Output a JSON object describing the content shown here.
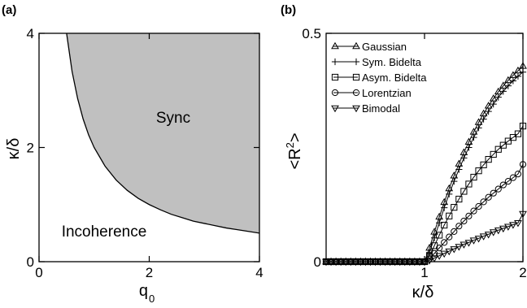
{
  "chart_data": [
    {
      "type": "area",
      "panel_label": "(a)",
      "xlabel": "q",
      "xlabel_subscript": "0",
      "ylabel": "κ/δ",
      "xlim": [
        0,
        4
      ],
      "ylim": [
        0,
        4
      ],
      "xticks": [
        0,
        2,
        4
      ],
      "xtick_labels": [
        "0",
        "2",
        "4"
      ],
      "yticks": [
        0,
        2,
        4
      ],
      "ytick_labels": [
        "0",
        "2",
        "4"
      ],
      "fill_color": "#c0c0c0",
      "boundary": {
        "x": [
          0.5,
          0.6,
          0.7,
          0.8,
          0.9,
          1.0,
          1.2,
          1.4,
          1.6,
          1.8,
          2.0,
          2.2,
          2.4,
          2.6,
          2.8,
          3.0,
          3.2,
          3.4,
          3.6,
          3.8,
          4.0
        ],
        "y": [
          4.0,
          3.33,
          2.86,
          2.5,
          2.22,
          2.0,
          1.67,
          1.43,
          1.25,
          1.11,
          1.0,
          0.91,
          0.83,
          0.77,
          0.71,
          0.67,
          0.63,
          0.59,
          0.56,
          0.53,
          0.5
        ]
      },
      "region_labels": [
        "Sync",
        "Incoherence"
      ]
    },
    {
      "type": "line",
      "panel_label": "(b)",
      "xlabel": "κ/δ",
      "ylabel": "<R",
      "ylabel_superscript": "2",
      "ylabel_end": ">",
      "xlim": [
        0,
        2
      ],
      "ylim": [
        0,
        0.5
      ],
      "xticks": [
        1,
        2
      ],
      "xtick_labels": [
        "1",
        "2"
      ],
      "yticks": [
        0,
        0.5
      ],
      "ytick_labels": [
        "0",
        "0.5"
      ],
      "legend_position": "top-left",
      "x": [
        0.0,
        0.05,
        0.1,
        0.15,
        0.2,
        0.25,
        0.3,
        0.35,
        0.4,
        0.45,
        0.5,
        0.55,
        0.6,
        0.65,
        0.7,
        0.75,
        0.8,
        0.85,
        0.9,
        0.95,
        1.0,
        1.05,
        1.1,
        1.15,
        1.2,
        1.25,
        1.3,
        1.35,
        1.4,
        1.45,
        1.5,
        1.55,
        1.6,
        1.65,
        1.7,
        1.75,
        1.8,
        1.85,
        1.9,
        1.95,
        2.0
      ],
      "series": [
        {
          "name": "Gaussian",
          "marker": "triangle-up",
          "values": [
            0,
            0,
            0,
            0,
            0,
            0,
            0,
            0,
            0,
            0,
            0,
            0,
            0,
            0,
            0,
            0,
            0,
            0,
            0,
            0,
            0,
            0.03,
            0.065,
            0.098,
            0.13,
            0.16,
            0.188,
            0.214,
            0.239,
            0.262,
            0.284,
            0.305,
            0.324,
            0.341,
            0.357,
            0.372,
            0.385,
            0.397,
            0.408,
            0.418,
            0.428
          ]
        },
        {
          "name": "Sym. Bidelta",
          "marker": "plus",
          "values": [
            0,
            0,
            0,
            0,
            0,
            0,
            0,
            0,
            0,
            0,
            0,
            0,
            0,
            0,
            0,
            0,
            0,
            0,
            0,
            0,
            0,
            0.02,
            0.052,
            0.085,
            0.118,
            0.148,
            0.176,
            0.202,
            0.227,
            0.25,
            0.272,
            0.293,
            0.312,
            0.329,
            0.345,
            0.36,
            0.373,
            0.385,
            0.396,
            0.406,
            0.415
          ]
        },
        {
          "name": "Asym. Bidelta",
          "marker": "square",
          "values": [
            0,
            0,
            0,
            0,
            0,
            0,
            0,
            0,
            0,
            0,
            0,
            0,
            0,
            0,
            0,
            0,
            0,
            0,
            0,
            0,
            0,
            0.012,
            0.035,
            0.058,
            0.08,
            0.1,
            0.119,
            0.137,
            0.154,
            0.17,
            0.185,
            0.199,
            0.212,
            0.224,
            0.235,
            0.246,
            0.255,
            0.264,
            0.272,
            0.28,
            0.297
          ]
        },
        {
          "name": "Lorentzian",
          "marker": "circle",
          "values": [
            0,
            0,
            0,
            0,
            0,
            0,
            0,
            0,
            0,
            0,
            0,
            0,
            0,
            0,
            0,
            0,
            0,
            0,
            0,
            0,
            0,
            0.006,
            0.018,
            0.03,
            0.042,
            0.054,
            0.066,
            0.078,
            0.089,
            0.1,
            0.111,
            0.121,
            0.131,
            0.141,
            0.15,
            0.159,
            0.168,
            0.176,
            0.184,
            0.192,
            0.213
          ]
        },
        {
          "name": "Bimodal",
          "marker": "triangle-down",
          "values": [
            0,
            0,
            0,
            0,
            0,
            0,
            0,
            0,
            0,
            0,
            0,
            0,
            0,
            0,
            0,
            0,
            0,
            0,
            0,
            0,
            0,
            0.003,
            0.008,
            0.013,
            0.018,
            0.023,
            0.028,
            0.033,
            0.038,
            0.042,
            0.047,
            0.051,
            0.056,
            0.06,
            0.065,
            0.069,
            0.073,
            0.077,
            0.081,
            0.085,
            0.105
          ]
        }
      ]
    }
  ]
}
